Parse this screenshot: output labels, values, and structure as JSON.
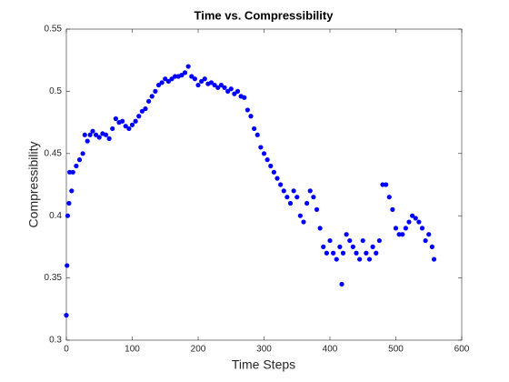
{
  "chart_data": {
    "type": "scatter",
    "title": "Time vs. Compressibility",
    "xlabel": "Time Steps",
    "ylabel": "Compressibility",
    "color": "#0000ff",
    "x": [
      0,
      1,
      2,
      4,
      5,
      8,
      10,
      15,
      20,
      25,
      28,
      32,
      36,
      40,
      45,
      50,
      55,
      60,
      65,
      70,
      75,
      80,
      85,
      90,
      95,
      100,
      105,
      110,
      115,
      120,
      125,
      130,
      135,
      140,
      145,
      150,
      155,
      160,
      165,
      170,
      175,
      180,
      185,
      190,
      195,
      200,
      205,
      210,
      215,
      220,
      225,
      230,
      235,
      240,
      245,
      250,
      255,
      260,
      265,
      270,
      275,
      280,
      285,
      290,
      295,
      300,
      305,
      310,
      315,
      320,
      325,
      330,
      335,
      340,
      345,
      350,
      355,
      360,
      365,
      370,
      375,
      380,
      385,
      390,
      395,
      400,
      405,
      410,
      415,
      418,
      420,
      425,
      430,
      435,
      440,
      445,
      450,
      455,
      460,
      465,
      470,
      475,
      480,
      485,
      490,
      495,
      500,
      505,
      510,
      515,
      520,
      525,
      530,
      535,
      540,
      545,
      550,
      555,
      558
    ],
    "y": [
      0.32,
      0.36,
      0.4,
      0.41,
      0.435,
      0.42,
      0.435,
      0.44,
      0.445,
      0.45,
      0.465,
      0.46,
      0.465,
      0.468,
      0.465,
      0.463,
      0.466,
      0.465,
      0.462,
      0.47,
      0.478,
      0.475,
      0.476,
      0.472,
      0.47,
      0.473,
      0.476,
      0.48,
      0.484,
      0.486,
      0.492,
      0.496,
      0.5,
      0.505,
      0.507,
      0.51,
      0.508,
      0.51,
      0.512,
      0.512,
      0.513,
      0.515,
      0.52,
      0.512,
      0.51,
      0.505,
      0.508,
      0.51,
      0.506,
      0.507,
      0.505,
      0.503,
      0.505,
      0.503,
      0.5,
      0.502,
      0.498,
      0.5,
      0.496,
      0.495,
      0.485,
      0.48,
      0.47,
      0.465,
      0.455,
      0.45,
      0.445,
      0.44,
      0.435,
      0.43,
      0.425,
      0.42,
      0.415,
      0.41,
      0.42,
      0.415,
      0.4,
      0.395,
      0.41,
      0.42,
      0.415,
      0.405,
      0.39,
      0.375,
      0.37,
      0.38,
      0.37,
      0.365,
      0.375,
      0.345,
      0.37,
      0.385,
      0.38,
      0.375,
      0.37,
      0.365,
      0.38,
      0.37,
      0.365,
      0.375,
      0.37,
      0.38,
      0.425,
      0.425,
      0.415,
      0.405,
      0.39,
      0.385,
      0.385,
      0.39,
      0.395,
      0.4,
      0.398,
      0.395,
      0.39,
      0.38,
      0.385,
      0.375,
      0.365
    ],
    "xlim": [
      0,
      600
    ],
    "xticks": [
      0,
      100,
      200,
      300,
      400,
      500,
      600
    ],
    "ylim": [
      0.3,
      0.55
    ],
    "yticks": [
      0.3,
      0.35,
      0.4,
      0.45,
      0.5,
      0.55
    ]
  }
}
